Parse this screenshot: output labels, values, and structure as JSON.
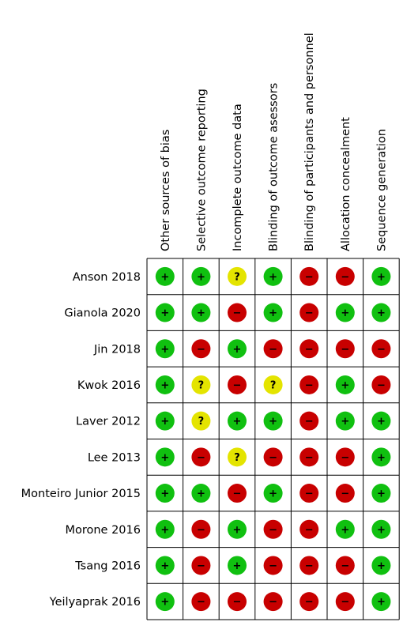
{
  "domains": [
    "Other sources of bias",
    "Selective outcome reporting",
    "Incomplete outcome data",
    "Blinding of outcome asessors",
    "Blinding of participants and personnel",
    "Allocation concealment",
    "Sequence generation"
  ],
  "studies": [
    {
      "name": "Anson 2018",
      "judgements": [
        "low",
        "low",
        "unclear",
        "low",
        "high",
        "high",
        "low"
      ]
    },
    {
      "name": "Gianola 2020",
      "judgements": [
        "low",
        "low",
        "high",
        "low",
        "high",
        "low",
        "low"
      ]
    },
    {
      "name": "Jin 2018",
      "judgements": [
        "low",
        "high",
        "low",
        "high",
        "high",
        "high",
        "high"
      ]
    },
    {
      "name": "Kwok 2016",
      "judgements": [
        "low",
        "unclear",
        "high",
        "unclear",
        "high",
        "low",
        "high"
      ]
    },
    {
      "name": "Laver 2012",
      "judgements": [
        "low",
        "unclear",
        "low",
        "low",
        "high",
        "low",
        "low"
      ]
    },
    {
      "name": "Lee 2013",
      "judgements": [
        "low",
        "high",
        "unclear",
        "high",
        "high",
        "high",
        "low"
      ]
    },
    {
      "name": "Monteiro Junior 2015",
      "judgements": [
        "low",
        "low",
        "high",
        "low",
        "high",
        "high",
        "low"
      ]
    },
    {
      "name": "Morone 2016",
      "judgements": [
        "low",
        "high",
        "low",
        "high",
        "high",
        "low",
        "low"
      ]
    },
    {
      "name": "Tsang 2016",
      "judgements": [
        "low",
        "high",
        "low",
        "high",
        "high",
        "high",
        "low"
      ]
    },
    {
      "name": "Yeilyaprak 2016",
      "judgements": [
        "low",
        "high",
        "high",
        "high",
        "high",
        "high",
        "low"
      ]
    }
  ],
  "legend": {
    "low": {
      "symbol": "+",
      "color": "#10c010"
    },
    "unclear": {
      "symbol": "?",
      "color": "#e4e400"
    },
    "high": {
      "symbol": "−",
      "color": "#c80000"
    }
  }
}
